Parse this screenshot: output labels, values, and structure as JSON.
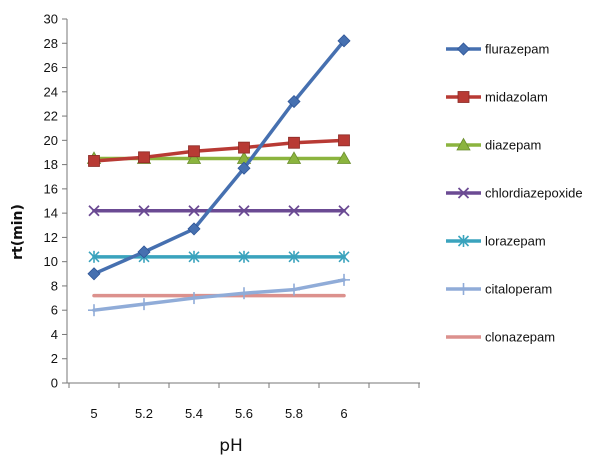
{
  "chart_data": {
    "type": "line",
    "xlabel": "pH",
    "ylabel": "rt(min)",
    "x": [
      5,
      5.2,
      5.4,
      5.6,
      5.8,
      6
    ],
    "x_tick_labels": [
      "5",
      "5.2",
      "5.4",
      "5.6",
      "5.8",
      "6"
    ],
    "ylim": [
      0,
      30
    ],
    "y_ticks": [
      0,
      2,
      4,
      6,
      8,
      10,
      12,
      14,
      16,
      18,
      20,
      22,
      24,
      26,
      28,
      30
    ],
    "grid": false,
    "legend_position": "right",
    "series": [
      {
        "name": "flurazepam",
        "color": "#4670b0",
        "marker": "diamond",
        "values": [
          9.0,
          10.8,
          12.7,
          17.7,
          23.2,
          28.2
        ]
      },
      {
        "name": "midazolam",
        "color": "#b83a34",
        "marker": "square",
        "values": [
          18.3,
          18.6,
          19.1,
          19.4,
          19.8,
          20.0
        ]
      },
      {
        "name": "diazepam",
        "color": "#8bb43e",
        "marker": "triangle",
        "values": [
          18.5,
          18.5,
          18.5,
          18.5,
          18.5,
          18.5
        ]
      },
      {
        "name": "chlordiazepoxide",
        "color": "#6b4a93",
        "marker": "x",
        "values": [
          14.2,
          14.2,
          14.2,
          14.2,
          14.2,
          14.2
        ]
      },
      {
        "name": "lorazepam",
        "color": "#3aa3bd",
        "marker": "asterisk",
        "values": [
          10.4,
          10.4,
          10.4,
          10.4,
          10.4,
          10.4
        ]
      },
      {
        "name": "citaloperam",
        "color": "#90acd8",
        "marker": "plus",
        "values": [
          6.0,
          6.5,
          7.0,
          7.4,
          7.7,
          8.5
        ]
      },
      {
        "name": "clonazepam",
        "color": "#dc918d",
        "marker": "none",
        "values": [
          7.2,
          7.2,
          7.2,
          7.2,
          7.2,
          7.2
        ]
      }
    ]
  }
}
